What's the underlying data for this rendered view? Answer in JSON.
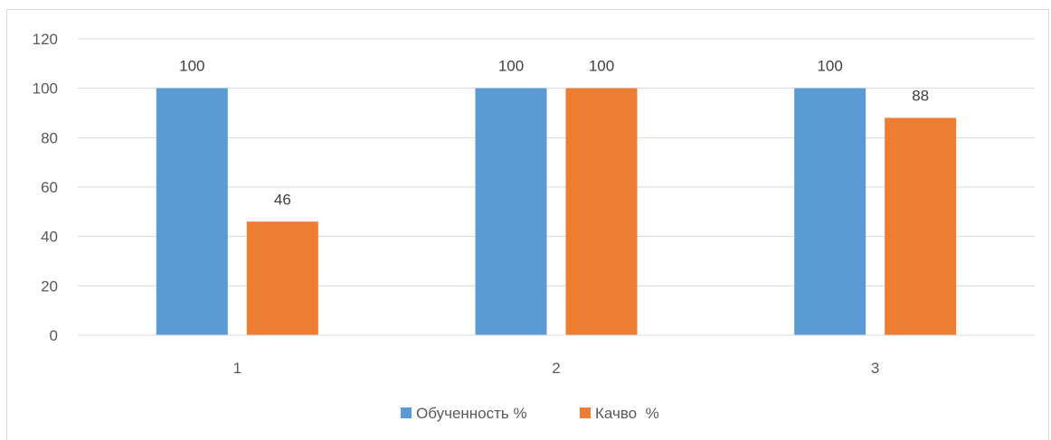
{
  "chart_data": {
    "type": "bar",
    "categories": [
      "1",
      "2",
      "3"
    ],
    "series": [
      {
        "name": "Обученность %",
        "values": [
          100,
          100,
          100
        ],
        "color": "#5b9bd5"
      },
      {
        "name": "Качво  %",
        "values": [
          46,
          100,
          88
        ],
        "color": "#ed7d31"
      }
    ],
    "ylim": [
      0,
      120
    ],
    "yticks": [
      0,
      20,
      40,
      60,
      80,
      100,
      120
    ],
    "grid": true,
    "gridline_color": "#d9d9d9",
    "data_labels": true,
    "legend_position": "bottom",
    "title": "",
    "xlabel": "",
    "ylabel": ""
  }
}
